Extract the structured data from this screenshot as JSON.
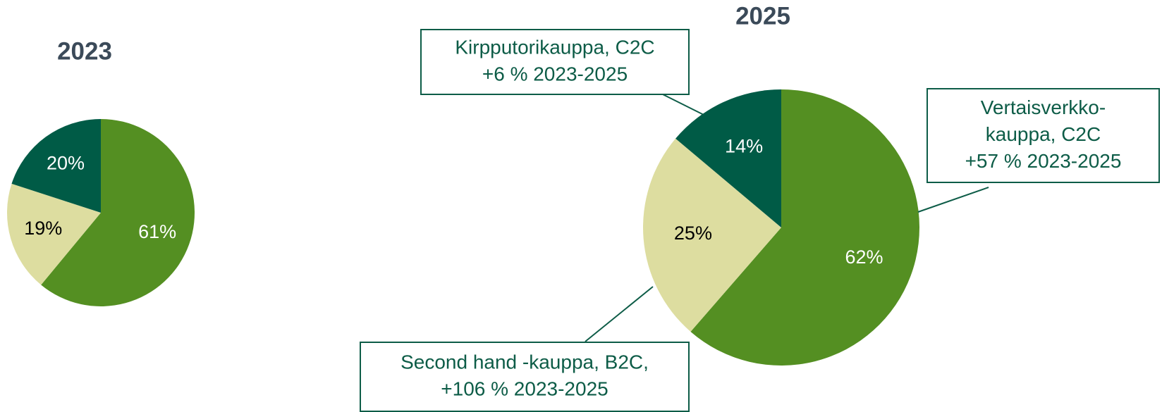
{
  "chart_data": [
    {
      "type": "pie",
      "title": "2023",
      "categories": [
        "Vertaisverkkokauppa, C2C",
        "Second hand -kauppa, B2C",
        "Kirpputorikauppa, C2C"
      ],
      "values": [
        61,
        19,
        20
      ],
      "value_labels": [
        "61%",
        "19%",
        "20%"
      ],
      "colors": [
        "#548f22",
        "#dddda0",
        "#005b46"
      ],
      "label_colors": [
        "#ffffff",
        "#000000",
        "#ffffff"
      ]
    },
    {
      "type": "pie",
      "title": "2025",
      "categories": [
        "Vertaisverkkokauppa, C2C",
        "Second hand -kauppa, B2C",
        "Kirpputorikauppa, C2C"
      ],
      "values": [
        62,
        25,
        14
      ],
      "value_labels": [
        "62%",
        "25%",
        "14%"
      ],
      "colors": [
        "#548f22",
        "#dddda0",
        "#005b46"
      ],
      "label_colors": [
        "#ffffff",
        "#000000",
        "#ffffff"
      ],
      "annotations": [
        {
          "lines": [
            "Kirpputorikauppa, C2C",
            "+6 % 2023-2025"
          ]
        },
        {
          "lines": [
            "Vertaisverkko-",
            "kauppa, C2C",
            "+57 % 2023-2025"
          ]
        },
        {
          "lines": [
            "Second hand -kauppa, B2C,",
            "+106 % 2023-2025"
          ]
        }
      ]
    }
  ]
}
